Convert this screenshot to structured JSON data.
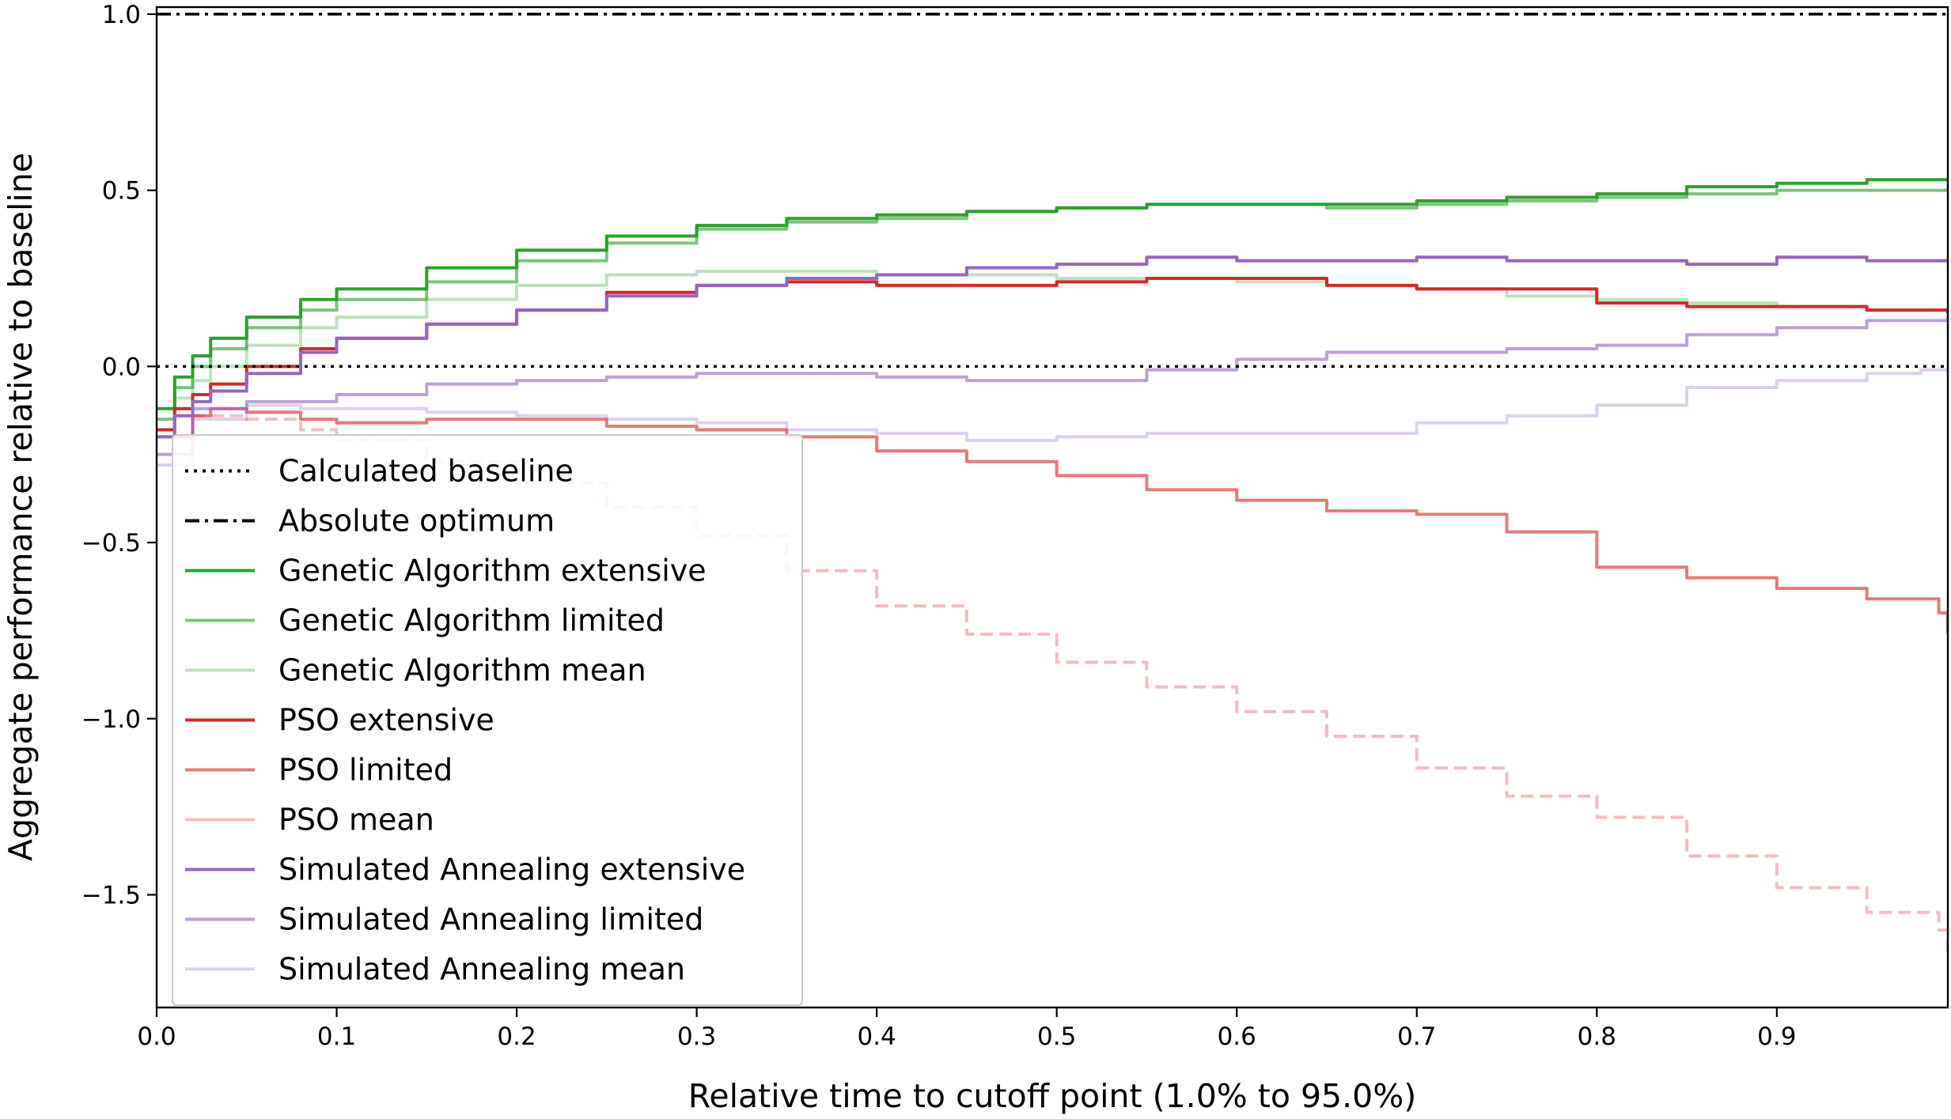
{
  "chart_data": {
    "type": "line",
    "xlabel": "Relative time to cutoff point (1.0% to 95.0%)",
    "ylabel": "Aggregate performance relative to baseline",
    "xlim": [
      0.0,
      0.995
    ],
    "ylim": [
      -1.82,
      1.02
    ],
    "x_ticks": [
      0.0,
      0.1,
      0.2,
      0.3,
      0.4,
      0.5,
      0.6,
      0.7,
      0.8,
      0.9
    ],
    "x_tick_labels": [
      "0.0",
      "0.1",
      "0.2",
      "0.3",
      "0.4",
      "0.5",
      "0.6",
      "0.7",
      "0.8",
      "0.9"
    ],
    "y_ticks": [
      1.0,
      0.5,
      0.0,
      -0.5,
      -1.0,
      -1.5
    ],
    "y_tick_labels": [
      "1.0",
      "0.5",
      "0.0",
      "−0.5",
      "−1.0",
      "−1.5"
    ],
    "grid": false,
    "legend_position": "lower-left",
    "reference_lines": [
      {
        "name": "Calculated baseline",
        "y": 0.0,
        "style": "dotted",
        "color": "#000000"
      },
      {
        "name": "Absolute optimum",
        "y": 1.0,
        "style": "dashdot",
        "color": "#000000"
      }
    ],
    "series": [
      {
        "name": "Genetic Algorithm extensive",
        "color": "#2ca02c",
        "opacity": 1.0,
        "style": "solid",
        "x": [
          0,
          0.01,
          0.02,
          0.03,
          0.05,
          0.08,
          0.1,
          0.15,
          0.2,
          0.25,
          0.3,
          0.35,
          0.4,
          0.45,
          0.5,
          0.55,
          0.6,
          0.65,
          0.7,
          0.75,
          0.8,
          0.85,
          0.9,
          0.95,
          0.995
        ],
        "y": [
          -0.12,
          -0.03,
          0.03,
          0.08,
          0.14,
          0.19,
          0.22,
          0.28,
          0.33,
          0.37,
          0.4,
          0.42,
          0.43,
          0.44,
          0.45,
          0.46,
          0.46,
          0.46,
          0.47,
          0.48,
          0.49,
          0.51,
          0.52,
          0.53,
          0.53
        ]
      },
      {
        "name": "Genetic Algorithm limited",
        "color": "#2ca02c",
        "opacity": 0.62,
        "style": "solid",
        "x": [
          0,
          0.01,
          0.02,
          0.03,
          0.05,
          0.08,
          0.1,
          0.15,
          0.2,
          0.25,
          0.3,
          0.35,
          0.4,
          0.45,
          0.5,
          0.55,
          0.6,
          0.65,
          0.7,
          0.75,
          0.8,
          0.85,
          0.9,
          0.95,
          0.995
        ],
        "y": [
          -0.15,
          -0.06,
          0.0,
          0.05,
          0.11,
          0.16,
          0.19,
          0.24,
          0.3,
          0.35,
          0.39,
          0.41,
          0.42,
          0.44,
          0.45,
          0.46,
          0.46,
          0.45,
          0.46,
          0.47,
          0.48,
          0.49,
          0.5,
          0.5,
          0.5
        ]
      },
      {
        "name": "Genetic Algorithm mean",
        "color": "#2ca02c",
        "opacity": 0.3,
        "style": "solid",
        "x": [
          0,
          0.01,
          0.02,
          0.03,
          0.05,
          0.08,
          0.1,
          0.15,
          0.2,
          0.25,
          0.3,
          0.35,
          0.4,
          0.45,
          0.5,
          0.55,
          0.6,
          0.65,
          0.7,
          0.75,
          0.8,
          0.85,
          0.9,
          0.95,
          0.995
        ],
        "y": [
          -0.18,
          -0.09,
          -0.04,
          0.0,
          0.06,
          0.11,
          0.14,
          0.19,
          0.23,
          0.26,
          0.27,
          0.27,
          0.26,
          0.26,
          0.25,
          0.25,
          0.24,
          0.23,
          0.22,
          0.2,
          0.19,
          0.18,
          0.17,
          0.16,
          0.15
        ]
      },
      {
        "name": "PSO extensive",
        "color": "#d62728",
        "opacity": 1.0,
        "style": "solid",
        "x": [
          0,
          0.01,
          0.02,
          0.03,
          0.05,
          0.08,
          0.1,
          0.15,
          0.2,
          0.25,
          0.3,
          0.35,
          0.4,
          0.45,
          0.5,
          0.55,
          0.6,
          0.65,
          0.7,
          0.75,
          0.8,
          0.85,
          0.9,
          0.95,
          0.995
        ],
        "y": [
          -0.18,
          -0.12,
          -0.08,
          -0.05,
          0.0,
          0.05,
          0.08,
          0.12,
          0.16,
          0.21,
          0.23,
          0.24,
          0.23,
          0.23,
          0.24,
          0.25,
          0.25,
          0.23,
          0.22,
          0.22,
          0.18,
          0.17,
          0.17,
          0.16,
          0.15
        ]
      },
      {
        "name": "PSO limited",
        "color": "#d62728",
        "opacity": 0.62,
        "style": "solid",
        "x": [
          0,
          0.02,
          0.03,
          0.05,
          0.08,
          0.1,
          0.15,
          0.2,
          0.25,
          0.3,
          0.35,
          0.4,
          0.45,
          0.5,
          0.55,
          0.6,
          0.65,
          0.7,
          0.75,
          0.8,
          0.85,
          0.9,
          0.95,
          0.99,
          0.995
        ],
        "y": [
          -0.2,
          -0.14,
          -0.12,
          -0.13,
          -0.15,
          -0.16,
          -0.15,
          -0.15,
          -0.17,
          -0.18,
          -0.2,
          -0.24,
          -0.27,
          -0.31,
          -0.35,
          -0.38,
          -0.41,
          -0.42,
          -0.47,
          -0.57,
          -0.6,
          -0.63,
          -0.66,
          -0.7,
          -0.76
        ]
      },
      {
        "name": "PSO mean",
        "color": "#d62728",
        "opacity": 0.3,
        "style": "dashed",
        "x": [
          0,
          0.02,
          0.05,
          0.08,
          0.1,
          0.15,
          0.2,
          0.25,
          0.3,
          0.35,
          0.4,
          0.45,
          0.5,
          0.55,
          0.6,
          0.65,
          0.7,
          0.75,
          0.8,
          0.85,
          0.9,
          0.95,
          0.99,
          0.995
        ],
        "y": [
          -0.2,
          -0.14,
          -0.15,
          -0.18,
          -0.21,
          -0.27,
          -0.33,
          -0.4,
          -0.48,
          -0.58,
          -0.68,
          -0.76,
          -0.84,
          -0.91,
          -0.98,
          -1.05,
          -1.14,
          -1.22,
          -1.28,
          -1.39,
          -1.48,
          -1.55,
          -1.6,
          -1.68
        ]
      },
      {
        "name": "Simulated Annealing extensive",
        "color": "#9467bd",
        "opacity": 1.0,
        "style": "solid",
        "x": [
          0,
          0.01,
          0.02,
          0.03,
          0.05,
          0.08,
          0.1,
          0.15,
          0.2,
          0.25,
          0.3,
          0.35,
          0.4,
          0.45,
          0.5,
          0.55,
          0.6,
          0.65,
          0.7,
          0.75,
          0.8,
          0.85,
          0.9,
          0.95,
          0.995
        ],
        "y": [
          -0.2,
          -0.14,
          -0.1,
          -0.07,
          -0.02,
          0.04,
          0.08,
          0.12,
          0.16,
          0.2,
          0.23,
          0.25,
          0.26,
          0.28,
          0.29,
          0.31,
          0.3,
          0.3,
          0.31,
          0.3,
          0.3,
          0.29,
          0.31,
          0.3,
          0.3
        ]
      },
      {
        "name": "Simulated Annealing limited",
        "color": "#9467bd",
        "opacity": 0.62,
        "style": "solid",
        "x": [
          0,
          0.02,
          0.05,
          0.08,
          0.1,
          0.15,
          0.2,
          0.25,
          0.3,
          0.35,
          0.4,
          0.45,
          0.5,
          0.55,
          0.6,
          0.65,
          0.7,
          0.75,
          0.8,
          0.85,
          0.9,
          0.95,
          0.995
        ],
        "y": [
          -0.25,
          -0.12,
          -0.1,
          -0.1,
          -0.08,
          -0.05,
          -0.04,
          -0.03,
          -0.02,
          -0.02,
          -0.03,
          -0.04,
          -0.04,
          -0.01,
          0.02,
          0.04,
          0.04,
          0.05,
          0.06,
          0.09,
          0.11,
          0.13,
          0.14
        ]
      },
      {
        "name": "Simulated Annealing mean",
        "color": "#9467bd",
        "opacity": 0.3,
        "style": "solid",
        "x": [
          0,
          0.02,
          0.05,
          0.08,
          0.1,
          0.15,
          0.2,
          0.25,
          0.3,
          0.35,
          0.4,
          0.45,
          0.5,
          0.55,
          0.6,
          0.65,
          0.7,
          0.75,
          0.8,
          0.85,
          0.9,
          0.95,
          0.98,
          0.995
        ],
        "y": [
          -0.28,
          -0.15,
          -0.11,
          -0.12,
          -0.12,
          -0.13,
          -0.14,
          -0.15,
          -0.16,
          -0.18,
          -0.19,
          -0.21,
          -0.2,
          -0.19,
          -0.19,
          -0.19,
          -0.16,
          -0.14,
          -0.11,
          -0.06,
          -0.04,
          -0.02,
          -0.01,
          0.0
        ]
      }
    ]
  }
}
